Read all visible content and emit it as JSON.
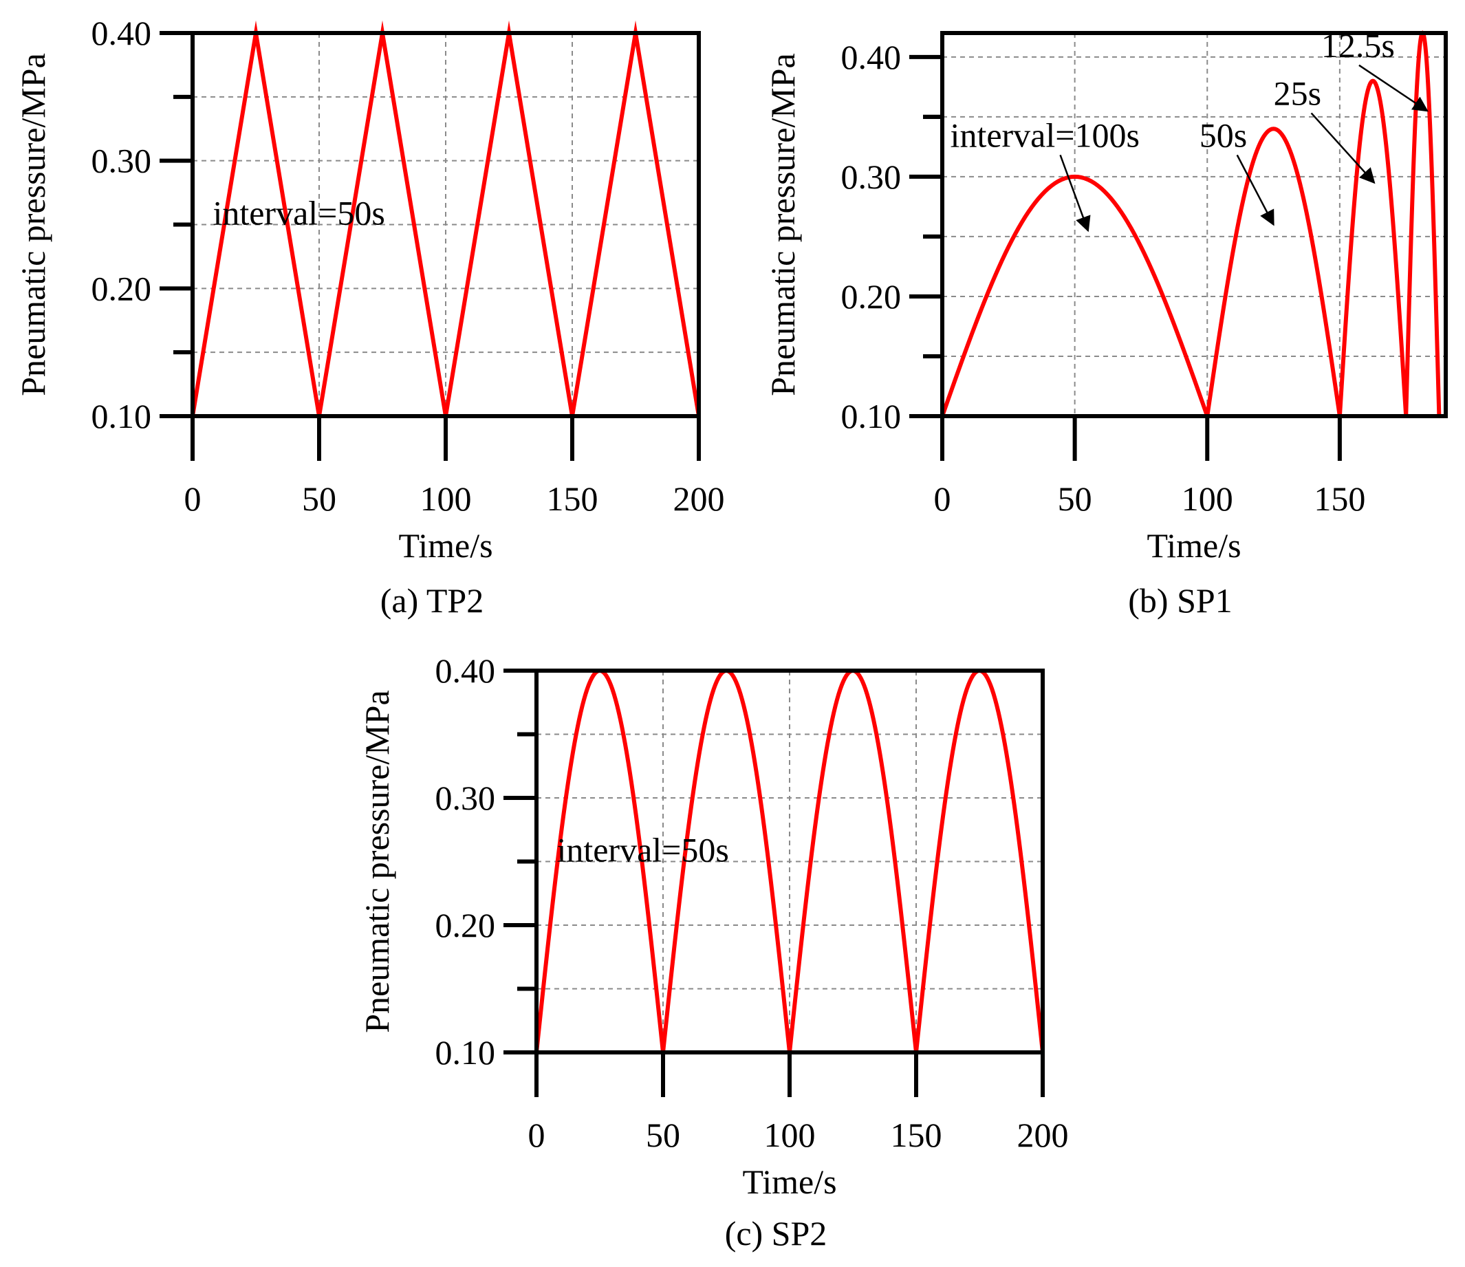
{
  "chart_data": [
    {
      "id": "a",
      "type": "line",
      "caption": "(a) TP2",
      "xlabel": "Time/s",
      "ylabel": "Pneumatic pressure/MPa",
      "xlim": [
        0,
        200
      ],
      "ylim": [
        0.1,
        0.4
      ],
      "xticks": [
        0,
        50,
        100,
        150,
        200
      ],
      "xtick_labels": [
        "0",
        "50",
        "100",
        "150",
        "200"
      ],
      "yticks": [
        0.1,
        0.2,
        0.3,
        0.4
      ],
      "ytick_labels": [
        "0.10",
        "0.20",
        "0.30",
        "0.40"
      ],
      "grid": true,
      "line_color": "#ff0000",
      "series": [
        {
          "name": "TP2",
          "shape": "triangle",
          "x": [
            0,
            25,
            50,
            75,
            100,
            125,
            150,
            175,
            200
          ],
          "y": [
            0.1,
            0.4,
            0.1,
            0.4,
            0.1,
            0.4,
            0.1,
            0.4,
            0.1
          ]
        }
      ],
      "annotations": [
        {
          "text": "interval=50s",
          "x": 8,
          "y": 0.25,
          "arrow": false
        }
      ]
    },
    {
      "id": "b",
      "type": "line",
      "caption": "(b) SP1",
      "xlabel": "Time/s",
      "ylabel": "Pneumatic pressure/MPa",
      "xlim": [
        0,
        190
      ],
      "ylim": [
        0.1,
        0.42
      ],
      "xticks": [
        0,
        50,
        100,
        150
      ],
      "xtick_labels": [
        "0",
        "50",
        "100",
        "150"
      ],
      "yticks": [
        0.1,
        0.2,
        0.3,
        0.4
      ],
      "ytick_labels": [
        "0.10",
        "0.20",
        "0.30",
        "0.40"
      ],
      "grid": true,
      "line_color": "#ff0000",
      "series": [
        {
          "name": "SP1",
          "shape": "sine_arches",
          "arches": [
            {
              "start": 0,
              "end": 100,
              "peak": 0.3
            },
            {
              "start": 100,
              "end": 150,
              "peak": 0.34
            },
            {
              "start": 150,
              "end": 175,
              "peak": 0.38
            },
            {
              "start": 175,
              "end": 187.5,
              "peak": 0.42
            }
          ],
          "base": 0.1
        }
      ],
      "annotations": [
        {
          "text": "interval=100s",
          "x": 3,
          "y": 0.325,
          "arrow": true,
          "ax": 55,
          "ay": 0.255
        },
        {
          "text": "50s",
          "x": 97,
          "y": 0.325,
          "arrow": true,
          "ax": 125,
          "ay": 0.26
        },
        {
          "text": "25s",
          "x": 125,
          "y": 0.36,
          "arrow": true,
          "ax": 163,
          "ay": 0.295
        },
        {
          "text": "12.5s",
          "x": 143,
          "y": 0.4,
          "arrow": true,
          "ax": 183,
          "ay": 0.355
        }
      ]
    },
    {
      "id": "c",
      "type": "line",
      "caption": "(c) SP2",
      "xlabel": "Time/s",
      "ylabel": "Pneumatic pressure/MPa",
      "xlim": [
        0,
        200
      ],
      "ylim": [
        0.1,
        0.4
      ],
      "xticks": [
        0,
        50,
        100,
        150,
        200
      ],
      "xtick_labels": [
        "0",
        "50",
        "100",
        "150",
        "200"
      ],
      "yticks": [
        0.1,
        0.2,
        0.3,
        0.4
      ],
      "ytick_labels": [
        "0.10",
        "0.20",
        "0.30",
        "0.40"
      ],
      "grid": true,
      "line_color": "#ff0000",
      "series": [
        {
          "name": "SP2",
          "shape": "sine_arches",
          "arches": [
            {
              "start": 0,
              "end": 50,
              "peak": 0.4
            },
            {
              "start": 50,
              "end": 100,
              "peak": 0.4
            },
            {
              "start": 100,
              "end": 150,
              "peak": 0.4
            },
            {
              "start": 150,
              "end": 200,
              "peak": 0.4
            }
          ],
          "base": 0.1
        }
      ],
      "annotations": [
        {
          "text": "interval=50s",
          "x": 8,
          "y": 0.25,
          "arrow": false
        }
      ]
    }
  ]
}
